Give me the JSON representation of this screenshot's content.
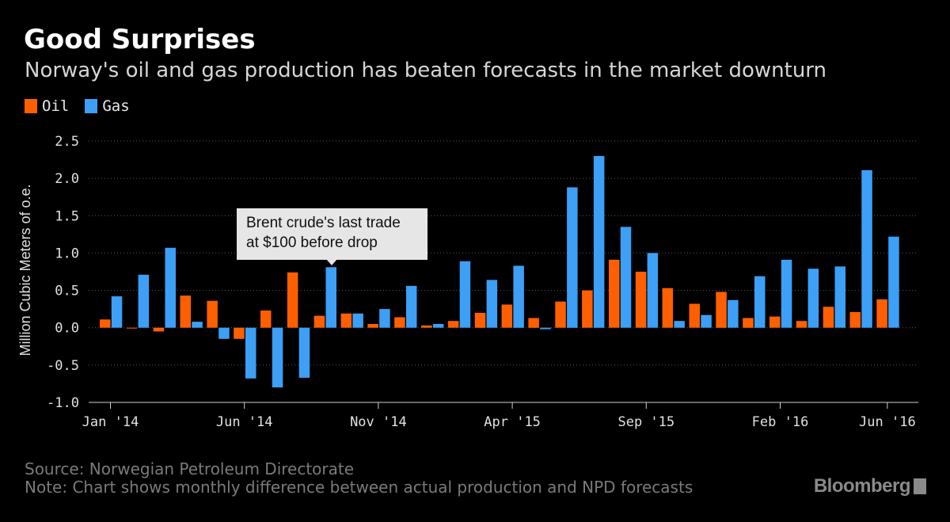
{
  "header": {
    "title": "Good Surprises",
    "subtitle": "Norway's oil and gas production has beaten forecasts in the market downturn"
  },
  "legend": [
    {
      "label": "Oil",
      "color": "#ff5f00"
    },
    {
      "label": "Gas",
      "color": "#3d9ff5"
    }
  ],
  "annotation": {
    "line1": "Brent crude's last trade",
    "line2": "at $100 before drop"
  },
  "footer": {
    "source": "Source: Norwegian Petroleum Directorate",
    "note": "Note: Chart shows monthly difference between actual production and NPD forecasts",
    "brand": "Bloomberg"
  },
  "chart_data": {
    "type": "bar",
    "ylabel": "Million Cubic Meters of o.e.",
    "ylim": [
      -1.0,
      2.5
    ],
    "yticks": [
      "2.5",
      "2.0",
      "1.5",
      "1.0",
      "0.5",
      "0.0",
      "-0.5",
      "-1.0"
    ],
    "ytick_values": [
      2.5,
      2.0,
      1.5,
      1.0,
      0.5,
      0.0,
      -0.5,
      -1.0
    ],
    "grid": true,
    "legend_position": "top-left",
    "categories": [
      "Jan '14",
      "Feb '14",
      "Mar '14",
      "Apr '14",
      "May '14",
      "Jun '14",
      "Jul '14",
      "Aug '14",
      "Sep '14",
      "Oct '14",
      "Nov '14",
      "Dec '14",
      "Jan '15",
      "Feb '15",
      "Mar '15",
      "Apr '15",
      "May '15",
      "Jun '15",
      "Jul '15",
      "Aug '15",
      "Sep '15",
      "Oct '15",
      "Nov '15",
      "Dec '15",
      "Jan '16",
      "Feb '16",
      "Mar '16",
      "Apr '16",
      "May '16",
      "Jun '16"
    ],
    "xtick_labels": [
      {
        "index": 0,
        "label": "Jan '14"
      },
      {
        "index": 5,
        "label": "Jun '14"
      },
      {
        "index": 10,
        "label": "Nov '14"
      },
      {
        "index": 15,
        "label": "Apr '15"
      },
      {
        "index": 20,
        "label": "Sep '15"
      },
      {
        "index": 25,
        "label": "Feb '16"
      },
      {
        "index": 29,
        "label": "Jun '16"
      }
    ],
    "series": [
      {
        "name": "Oil",
        "color": "#ff5f00",
        "values": [
          0.11,
          -0.01,
          -0.05,
          0.43,
          0.36,
          -0.15,
          0.23,
          0.74,
          0.16,
          0.19,
          0.05,
          0.14,
          0.03,
          0.09,
          0.2,
          0.31,
          0.13,
          0.35,
          0.5,
          0.91,
          0.75,
          0.53,
          0.32,
          0.48,
          0.13,
          0.15,
          0.09,
          0.28,
          0.21,
          0.38
        ]
      },
      {
        "name": "Gas",
        "color": "#3d9ff5",
        "values": [
          0.42,
          0.71,
          1.07,
          0.08,
          -0.15,
          -0.68,
          -0.8,
          -0.67,
          0.81,
          0.19,
          0.25,
          0.56,
          0.05,
          0.89,
          0.64,
          0.83,
          -0.02,
          1.88,
          2.3,
          1.35,
          1.0,
          0.09,
          0.17,
          0.37,
          0.69,
          0.91,
          0.79,
          0.82,
          2.11,
          1.22
        ]
      }
    ]
  }
}
